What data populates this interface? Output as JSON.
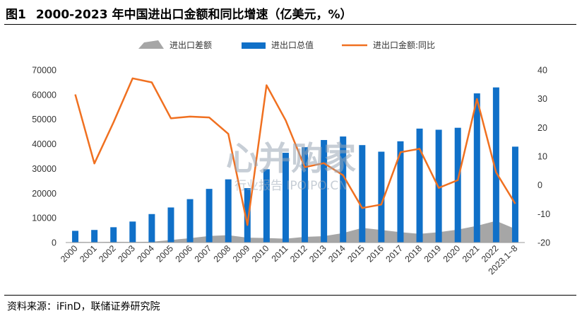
{
  "header": {
    "figure_no": "图1",
    "title": "2000-2023 年中国进出口金额和同比增速（亿美元，%）"
  },
  "footer": {
    "source": "资料来源：iFinD，联储证券研究院"
  },
  "watermark": {
    "main": "心并购家",
    "sub": "行业报告 IPOIPO.CN"
  },
  "chart_data": {
    "type": "bar",
    "categories": [
      "2000",
      "2001",
      "2002",
      "2003",
      "2004",
      "2005",
      "2006",
      "2007",
      "2008",
      "2009",
      "2010",
      "2011",
      "2012",
      "2013",
      "2014",
      "2015",
      "2016",
      "2017",
      "2018",
      "2019",
      "2020",
      "2021",
      "2022",
      "2023.1~8"
    ],
    "series": [
      {
        "name": "进出口差额",
        "kind": "area",
        "axis": "left",
        "color": "#a6a6a6",
        "values": [
          241,
          225,
          304,
          255,
          321,
          1020,
          1775,
          2643,
          2981,
          1961,
          1815,
          1549,
          2303,
          2592,
          3825,
          5939,
          5100,
          4196,
          3509,
          4211,
          5240,
          6764,
          8776,
          5532
        ]
      },
      {
        "name": "进出口总值",
        "kind": "bar",
        "axis": "left",
        "color": "#1070c8",
        "values": [
          4743,
          5097,
          6208,
          8510,
          11546,
          14219,
          17604,
          21761,
          25632,
          22075,
          29740,
          36419,
          38671,
          41590,
          43015,
          39530,
          36856,
          41071,
          46224,
          45761,
          46559,
          60514,
          62930,
          38900
        ]
      },
      {
        "name": "进出口金额:同比",
        "kind": "line",
        "axis": "right",
        "color": "#f07020",
        "values": [
          31.5,
          7.5,
          21.8,
          37.1,
          35.7,
          23.2,
          23.8,
          23.5,
          17.8,
          -13.9,
          34.7,
          22.5,
          6.2,
          7.6,
          3.4,
          -8.0,
          -6.8,
          11.4,
          12.6,
          -1.0,
          1.7,
          29.9,
          4.4,
          -6.5
        ]
      }
    ],
    "y_left": {
      "min": 0,
      "max": 70000,
      "ticks": [
        0,
        10000,
        20000,
        30000,
        40000,
        50000,
        60000,
        70000
      ]
    },
    "y_right": {
      "min": -20,
      "max": 40,
      "ticks": [
        -20,
        -10,
        0,
        10,
        20,
        30,
        40
      ]
    },
    "legend_position": "top-center",
    "grid": false
  }
}
